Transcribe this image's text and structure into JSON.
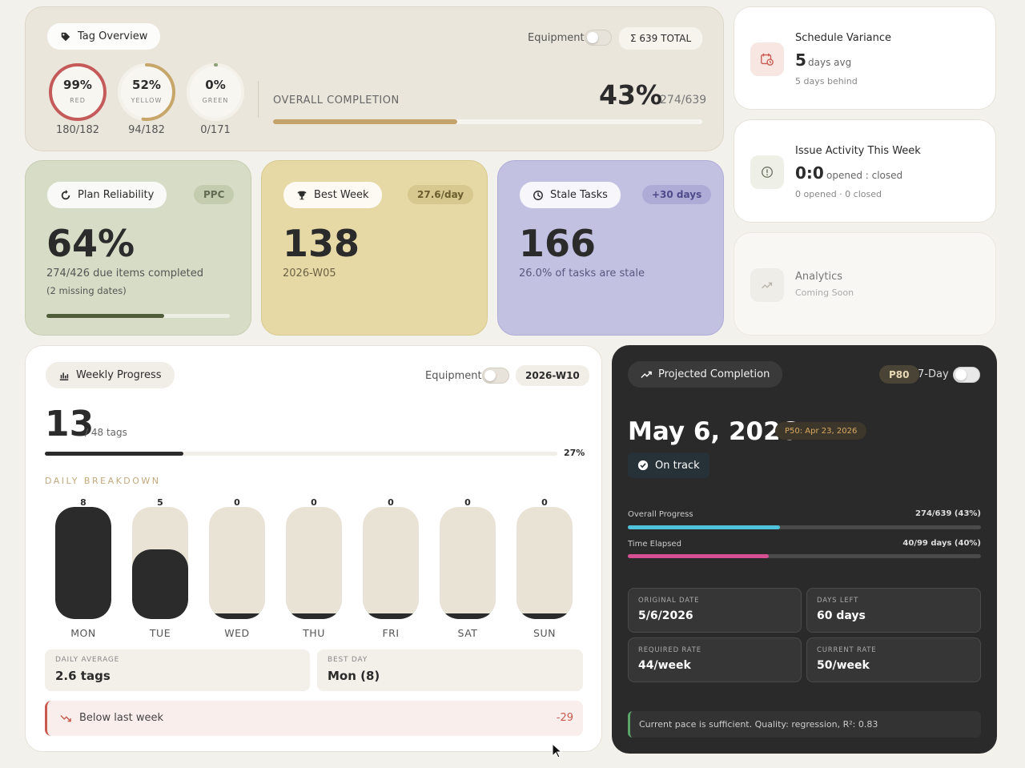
{
  "tag_overview": {
    "title": "Tag Overview",
    "equipment_label": "Equipment",
    "total_label": "Σ 639 TOTAL",
    "rings": [
      {
        "pct": "99%",
        "name": "RED",
        "count": "180/182",
        "fraction": 0.99,
        "color": "#c45a5a"
      },
      {
        "pct": "52%",
        "name": "YELLOW",
        "count": "94/182",
        "fraction": 0.52,
        "color": "#c7a66a"
      },
      {
        "pct": "0%",
        "name": "GREEN",
        "count": "0/171",
        "fraction": 0.0,
        "color": "#8fa17a"
      }
    ],
    "completion_label": "OVERALL COMPLETION",
    "completion_pct": "43%",
    "completion_count": "274/639",
    "completion_fraction": 0.43,
    "bar_color": "#c4a46c"
  },
  "plan_reliability": {
    "title": "Plan Reliability",
    "badge": "PPC",
    "value": "64%",
    "sub": "274/426 due items completed",
    "note": "(2 missing dates)",
    "fraction": 0.64,
    "bg_color": "#d6dcc5"
  },
  "best_week": {
    "title": "Best Week",
    "badge": "27.6/day",
    "value": "138",
    "sub": "2026-W05",
    "bg_color": "#e7d9a5"
  },
  "stale_tasks": {
    "title": "Stale Tasks",
    "badge": "+30 days",
    "value": "166",
    "sub": "26.0% of tasks are stale",
    "bg_color": "#c3c1e2"
  },
  "schedule_variance": {
    "title": "Schedule Variance",
    "value": "5",
    "unit": "days avg",
    "sub": "5 days behind",
    "icon": "calendar-clock-icon"
  },
  "issue_activity": {
    "title": "Issue Activity This Week",
    "value": "0:0",
    "unit": "opened : closed",
    "sub": "0 opened · 0 closed",
    "icon": "alert-circle-icon"
  },
  "analytics": {
    "title": "Analytics",
    "sub": "Coming Soon",
    "icon": "trend-icon"
  },
  "weekly_progress": {
    "title": "Weekly Progress",
    "equipment_label": "Equipment",
    "week": "2026-W10",
    "value": "13",
    "of_label": "/ 48 tags",
    "pct": "27%",
    "fraction": 0.27,
    "breakdown_label": "DAILY BREAKDOWN",
    "days": [
      {
        "name": "MON",
        "value": 8
      },
      {
        "name": "TUE",
        "value": 5
      },
      {
        "name": "WED",
        "value": 0
      },
      {
        "name": "THU",
        "value": 0
      },
      {
        "name": "FRI",
        "value": 0
      },
      {
        "name": "SAT",
        "value": 0
      },
      {
        "name": "SUN",
        "value": 0
      }
    ],
    "day_max": 8,
    "daily_average_label": "DAILY AVERAGE",
    "daily_average": "2.6 tags",
    "best_day_label": "BEST DAY",
    "best_day": "Mon (8)",
    "comparison_text": "Below last week",
    "comparison_value": "-29"
  },
  "projection": {
    "title": "Projected Completion",
    "badge": "P80",
    "toggle_label": "7-Day",
    "date": "May 6, 2026",
    "p50": "P50: Apr 23, 2026",
    "status": "On track",
    "overall_label": "Overall Progress",
    "overall_value": "274/639 (43%)",
    "overall_fraction": 0.43,
    "elapsed_label": "Time Elapsed",
    "elapsed_value": "40/99 days (40%)",
    "elapsed_fraction": 0.4,
    "boxes": [
      {
        "label": "ORIGINAL DATE",
        "value": "5/6/2026"
      },
      {
        "label": "DAYS LEFT",
        "value": "60 days"
      },
      {
        "label": "REQUIRED RATE",
        "value": "44/week"
      },
      {
        "label": "CURRENT RATE",
        "value": "50/week"
      }
    ],
    "note": "Current pace is sufficient. Quality: regression, R²: 0.83",
    "overall_color": "#4fc3dc",
    "elapsed_color": "#d64f93"
  }
}
